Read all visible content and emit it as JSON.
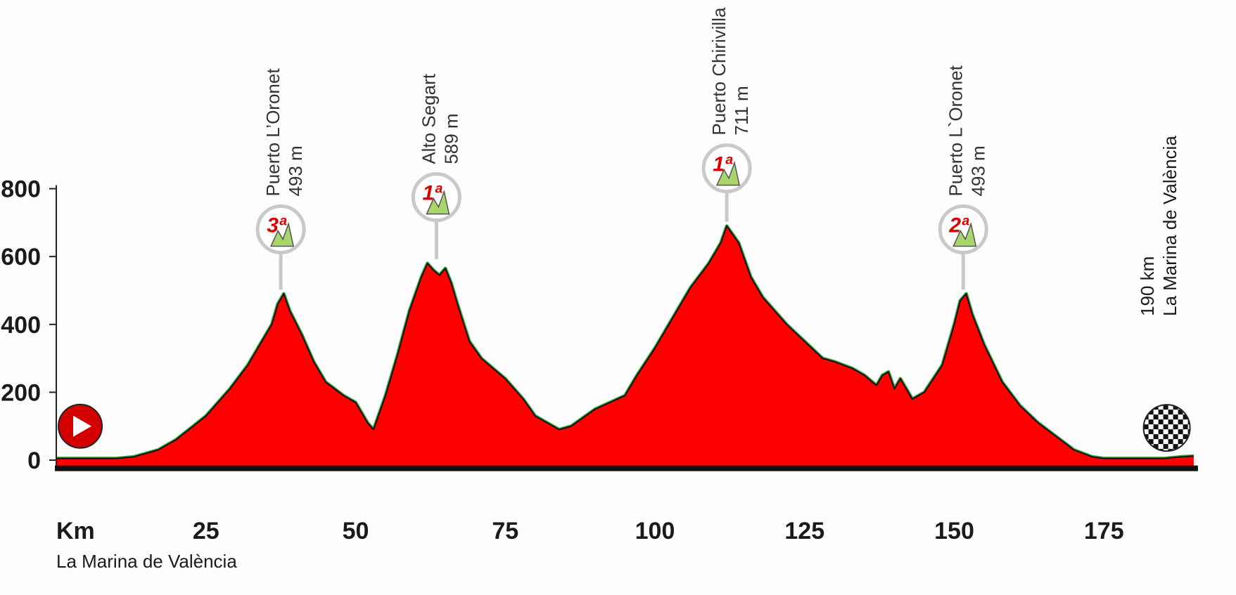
{
  "chart_data": {
    "type": "area",
    "title": "",
    "xlabel": "Km",
    "ylabel": "",
    "xlim": [
      0,
      190
    ],
    "ylim": [
      0,
      800
    ],
    "x_ticks": [
      25,
      50,
      75,
      100,
      125,
      150,
      175
    ],
    "y_ticks": [
      0,
      200,
      400,
      600,
      800
    ],
    "start_location": "La Marina de València",
    "finish": {
      "distance": "190 km",
      "location": "La Marina de València"
    },
    "series": [
      {
        "x": [
          0,
          5,
          10,
          13,
          17,
          20,
          25,
          29,
          32,
          34,
          36,
          37,
          38,
          39,
          41,
          43,
          45,
          48,
          50,
          52,
          53,
          55,
          57,
          59,
          61,
          62,
          63,
          64,
          65,
          66,
          67,
          69,
          71,
          73,
          75,
          78,
          80,
          84,
          86,
          90,
          95,
          97,
          100,
          103,
          106,
          109,
          111,
          112,
          114,
          116,
          118,
          120,
          122,
          125,
          128,
          130,
          133,
          135,
          137,
          138,
          139,
          140,
          141,
          143,
          145,
          148,
          150,
          151,
          152,
          153,
          155,
          158,
          161,
          164,
          167,
          170,
          173,
          175,
          180,
          185,
          188,
          190
        ],
        "y": [
          5,
          5,
          5,
          10,
          30,
          60,
          130,
          210,
          280,
          340,
          400,
          460,
          490,
          440,
          370,
          290,
          230,
          190,
          170,
          110,
          90,
          190,
          310,
          440,
          540,
          580,
          560,
          545,
          565,
          520,
          460,
          350,
          300,
          270,
          240,
          180,
          130,
          90,
          100,
          150,
          190,
          250,
          330,
          420,
          510,
          580,
          640,
          690,
          640,
          540,
          480,
          440,
          400,
          350,
          300,
          290,
          270,
          250,
          220,
          250,
          260,
          210,
          240,
          180,
          200,
          280,
          400,
          470,
          490,
          430,
          340,
          230,
          160,
          110,
          70,
          30,
          10,
          5,
          5,
          5,
          10,
          12
        ]
      }
    ],
    "climbs": [
      {
        "name": "Puerto L’Oronet",
        "altitude": "493 m",
        "category": "3ª",
        "km": 37.5,
        "peak": 490,
        "badge_y": 680
      },
      {
        "name": "Alto Segart",
        "altitude": "589 m",
        "category": "1ª",
        "km": 63.5,
        "peak": 580,
        "badge_y": 775
      },
      {
        "name": "Puerto Chirivilla",
        "altitude": "711 m",
        "category": "1ª",
        "km": 112,
        "peak": 690,
        "badge_y": 860
      },
      {
        "name": "Puerto L`Oronet",
        "altitude": "493 m",
        "category": "2ª",
        "km": 151.5,
        "peak": 490,
        "badge_y": 680
      }
    ],
    "colors": {
      "fill": "#ff0000",
      "outline": "#111111",
      "grass": "#3aa83a",
      "badge": "#c9c9c9",
      "category_text": "#e00000",
      "start_icon": "#d40000"
    },
    "icons": {
      "start": "play-icon",
      "finish": "checkered-flag-icon"
    }
  }
}
